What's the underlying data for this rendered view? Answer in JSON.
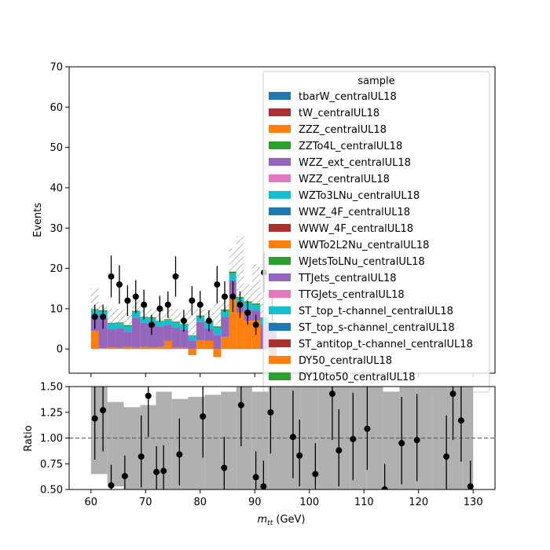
{
  "chart_data": [
    {
      "type": "bar",
      "stacked": true,
      "ylabel": "Events",
      "xlim": [
        56,
        134
      ],
      "ylim": [
        -6,
        70
      ],
      "yticks": [
        0,
        10,
        20,
        30,
        40,
        50,
        60,
        70
      ],
      "xticks": [
        60,
        70,
        80,
        90,
        100,
        110,
        120,
        130
      ],
      "bin_edges": [
        60,
        61.4,
        63,
        64.5,
        66,
        67.5,
        69,
        70.4,
        71.9,
        73.4,
        74.8,
        76.3,
        77.8,
        79.3,
        80.8,
        82.4,
        83.8,
        85.3,
        86.6,
        88,
        89.5,
        91,
        92.5,
        94
      ],
      "series": [
        {
          "name": "DY50_centralUL18",
          "values": [
            4.5,
            0.2,
            0.4,
            0.3,
            0.5,
            0.3,
            0.5,
            0.4,
            0.5,
            2,
            0.3,
            0.3,
            -1.5,
            2.2,
            2,
            -2,
            3,
            13,
            9,
            7,
            7,
            0,
            -2
          ]
        },
        {
          "name": "TTJets_centralUL18",
          "values": [
            4,
            7.5,
            4.5,
            4.8,
            3.8,
            7.5,
            6,
            6,
            5,
            4,
            5,
            4.5,
            2,
            4.5,
            3,
            3.5,
            5,
            4,
            2,
            2.8,
            2.5,
            6,
            5
          ]
        },
        {
          "name": "ST_top_t-channel_centralUL18",
          "values": [
            1.2,
            1.6,
            1.4,
            1.3,
            1.3,
            1.5,
            1.3,
            1.2,
            1.3,
            1.2,
            1.2,
            1.2,
            1.2,
            1.3,
            1.6,
            1.8,
            1.5,
            1.7,
            1.6,
            1.7,
            1.4,
            1.5,
            1.4
          ]
        },
        {
          "name": "DY10to50_centralUL18",
          "values": [
            0.2,
            0.3,
            0.2,
            0.2,
            0.3,
            0.2,
            0.2,
            0.3,
            0.2,
            0.2,
            0.3,
            0.2,
            0.2,
            0.3,
            0.3,
            0.3,
            0.3,
            0.5,
            0.3,
            0.3,
            0.4,
            0.3,
            0.3
          ]
        }
      ],
      "uncertainty_total": [
        15,
        11,
        10,
        10,
        9,
        12,
        11,
        10,
        10,
        10,
        10,
        9,
        10,
        10,
        10,
        12,
        12,
        25,
        28,
        16,
        21,
        14,
        12
      ],
      "data_points": {
        "x": [
          60.7,
          62.2,
          63.7,
          65.2,
          66.7,
          68.2,
          69.7,
          71.1,
          72.6,
          74.1,
          75.5,
          77,
          78.5,
          80,
          81.6,
          83.1,
          84.5,
          86,
          87.3,
          88.7,
          90.2,
          91.7,
          93.2
        ],
        "y": [
          8,
          8,
          18,
          16,
          12,
          13,
          11,
          6,
          10,
          11,
          18,
          7,
          12,
          11,
          7,
          16,
          13,
          13,
          11,
          9,
          6,
          19,
          10
        ],
        "err": [
          3,
          3,
          5.2,
          4.8,
          3.8,
          4.1,
          3.7,
          2.5,
          3.2,
          3.3,
          5,
          2.7,
          3.6,
          3.4,
          2.6,
          4.6,
          3.8,
          3.8,
          3.3,
          3,
          2.5,
          5,
          3
        ]
      },
      "legend": {
        "title": "sample",
        "placement": "top-right",
        "entries": [
          {
            "label": "tbarW_centralUL18",
            "color": "#1f77b4"
          },
          {
            "label": "tW_centralUL18",
            "color": "#ab3131"
          },
          {
            "label": "ZZZ_centralUL18",
            "color": "#ff7f0e"
          },
          {
            "label": "ZZTo4L_centralUL18",
            "color": "#2ca02c"
          },
          {
            "label": "WZZ_ext_centralUL18",
            "color": "#9467bd"
          },
          {
            "label": "WZZ_centralUL18",
            "color": "#e377c2"
          },
          {
            "label": "WZTo3LNu_centralUL18",
            "color": "#17becf"
          },
          {
            "label": "WWZ_4F_centralUL18",
            "color": "#1f77b4"
          },
          {
            "label": "WWW_4F_centralUL18",
            "color": "#ab3131"
          },
          {
            "label": "WWTo2L2Nu_centralUL18",
            "color": "#ff7f0e"
          },
          {
            "label": "WJetsToLNu_centralUL18",
            "color": "#2ca02c"
          },
          {
            "label": "TTJets_centralUL18",
            "color": "#9467bd"
          },
          {
            "label": "TTGJets_centralUL18",
            "color": "#e377c2"
          },
          {
            "label": "ST_top_t-channel_centralUL18",
            "color": "#17becf"
          },
          {
            "label": "ST_top_s-channel_centralUL18",
            "color": "#1f77b4"
          },
          {
            "label": "ST_antitop_t-channel_centralUL18",
            "color": "#ab3131"
          },
          {
            "label": "DY50_centralUL18",
            "color": "#ff7f0e"
          },
          {
            "label": "DY10to50_centralUL18",
            "color": "#2ca02c"
          }
        ]
      }
    },
    {
      "type": "scatter",
      "xlabel": "m_tt (GeV)",
      "xlabel_main": "m",
      "xlabel_sub": "tt",
      "xlabel_unit": " (GeV)",
      "ylabel": "Ratio",
      "xlim": [
        56,
        134
      ],
      "ylim": [
        0.5,
        1.5
      ],
      "yticks": [
        "0.50",
        "0.75",
        "1.00",
        "1.25",
        "1.50"
      ],
      "xticks": [
        60,
        70,
        80,
        90,
        100,
        110,
        120,
        130
      ],
      "reference_line": 1.0,
      "band_edges": [
        60,
        63,
        66,
        69,
        71.9,
        74.8,
        77.8,
        80.8,
        83.8,
        86.6,
        89.5,
        92.5,
        95.5,
        98.5,
        101.5,
        104.5,
        107.5,
        110.5,
        113.5,
        116.5,
        119.5,
        122.5,
        125.5,
        128,
        130
      ],
      "band_low": [
        0.65,
        0.53,
        0.5,
        0.5,
        0.5,
        0.5,
        0.5,
        0.5,
        0.5,
        0.5,
        0.5,
        0.5,
        0.5,
        0.5,
        0.5,
        0.5,
        0.5,
        0.5,
        0.5,
        0.5,
        0.5,
        0.5,
        0.5,
        0.5
      ],
      "band_high": [
        1.5,
        1.35,
        1.3,
        1.32,
        1.45,
        1.38,
        1.4,
        1.42,
        1.45,
        1.5,
        1.45,
        1.5,
        1.5,
        1.5,
        1.5,
        1.5,
        1.5,
        1.5,
        1.45,
        1.5,
        1.5,
        1.5,
        1.5,
        1.5
      ],
      "x": [
        60.7,
        62.2,
        63.7,
        66.2,
        69.2,
        70.5,
        72,
        73.3,
        76.2,
        80.5,
        84.4,
        87.5,
        90.2,
        91.6,
        92.9,
        97,
        98.2,
        101.1,
        104.2,
        105.4,
        108,
        110.6,
        113.8,
        116.9,
        119.7,
        125.1,
        126.3,
        127.8,
        129.5
      ],
      "y": [
        1.19,
        1.27,
        0.54,
        0.63,
        0.82,
        1.41,
        0.67,
        0.68,
        0.84,
        1.21,
        0.71,
        1.32,
        0.62,
        0.53,
        1.25,
        1.01,
        0.83,
        0.65,
        1.43,
        0.88,
        0.99,
        1.09,
        0.5,
        0.95,
        0.98,
        0.82,
        1.43,
        1.17,
        0.53
      ],
      "err_low": [
        0.4,
        0.4,
        0.12,
        0.15,
        0.3,
        0.4,
        0.2,
        0.22,
        0.3,
        0.4,
        0.25,
        0.4,
        0.2,
        0.2,
        0.4,
        0.4,
        0.3,
        0.25,
        0.45,
        0.35,
        0.4,
        0.4,
        0.2,
        0.4,
        0.4,
        0.35,
        0.45,
        0.4,
        0.2
      ],
      "err_high": [
        0.45,
        0.45,
        0.2,
        0.2,
        0.4,
        0.45,
        0.25,
        0.25,
        0.35,
        0.45,
        0.3,
        0.45,
        0.25,
        0.25,
        0.45,
        0.45,
        0.35,
        0.3,
        0.5,
        0.4,
        0.45,
        0.45,
        0.25,
        0.45,
        0.45,
        0.4,
        0.5,
        0.45,
        0.25
      ]
    }
  ]
}
